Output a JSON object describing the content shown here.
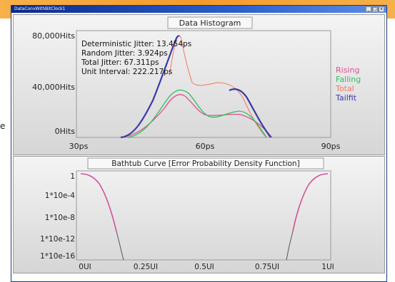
{
  "window": {
    "title": "DataConvWithBitClock1",
    "controls": [
      "_",
      "□",
      "x"
    ]
  },
  "side_text": "e",
  "histogram": {
    "title": "Data Histogram",
    "y_ticks": [
      "80,000Hits",
      "40,000Hits",
      "0Hits"
    ],
    "x_ticks": [
      "30ps",
      "60ps",
      "90ps"
    ],
    "stats": [
      "Deterministic Jitter: 13.454ps",
      "Random Jitter: 3.924ps",
      "Total Jitter: 67.311ps",
      "Unit Interval: 222.217ps"
    ],
    "legend": [
      {
        "name": "Rising",
        "color": "#e0508a"
      },
      {
        "name": "Falling",
        "color": "#2ec060"
      },
      {
        "name": "Total",
        "color": "#f07a5c"
      },
      {
        "name": "Tailfit",
        "color": "#3a3aa8"
      }
    ]
  },
  "bathtub": {
    "title": "Bathtub Curve [Error Probability Density Function]",
    "y_ticks": [
      "1",
      "1*10e-4",
      "1*10e-8",
      "1*10e-12",
      "1*10e-16"
    ],
    "x_ticks": [
      "0UI",
      "0.25UI",
      "0.5UI",
      "0.75UI",
      "1UI"
    ],
    "curve_color": "#d0509a",
    "tail_color": "#555555"
  }
}
